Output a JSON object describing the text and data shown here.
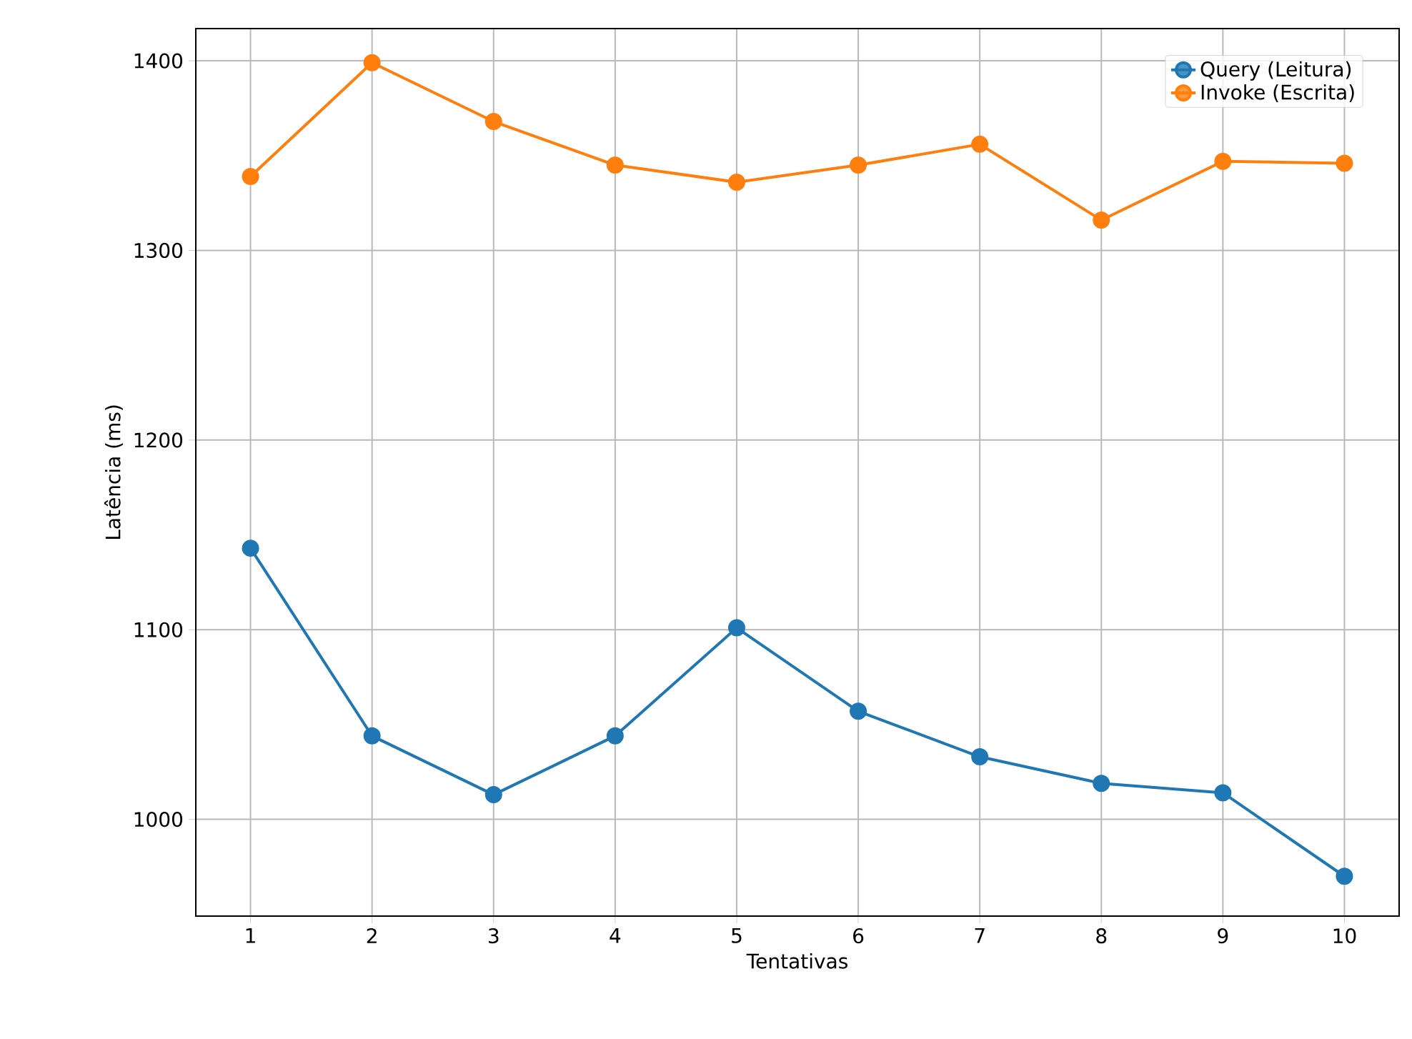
{
  "chart_data": {
    "type": "line",
    "xlabel": "Tentativas",
    "ylabel": "Latência (ms)",
    "x": [
      1,
      2,
      3,
      4,
      5,
      6,
      7,
      8,
      9,
      10
    ],
    "series": [
      {
        "name": "Query (Leitura)",
        "color": "#1f77b4",
        "values": [
          1143,
          1044,
          1013,
          1044,
          1101,
          1057,
          1033,
          1019,
          1014,
          970
        ]
      },
      {
        "name": "Invoke (Escrita)",
        "color": "#ff7f0e",
        "values": [
          1339,
          1399,
          1368,
          1345,
          1336,
          1345,
          1356,
          1316,
          1347,
          1346
        ]
      }
    ],
    "xlim": [
      0.55,
      10.45
    ],
    "ylim": [
      949,
      1417
    ],
    "xticks": [
      1,
      2,
      3,
      4,
      5,
      6,
      7,
      8,
      9,
      10
    ],
    "yticks": [
      1000,
      1100,
      1200,
      1300,
      1400
    ],
    "grid": true,
    "legend": "top right",
    "marker": "circle",
    "line_style": "solid"
  }
}
